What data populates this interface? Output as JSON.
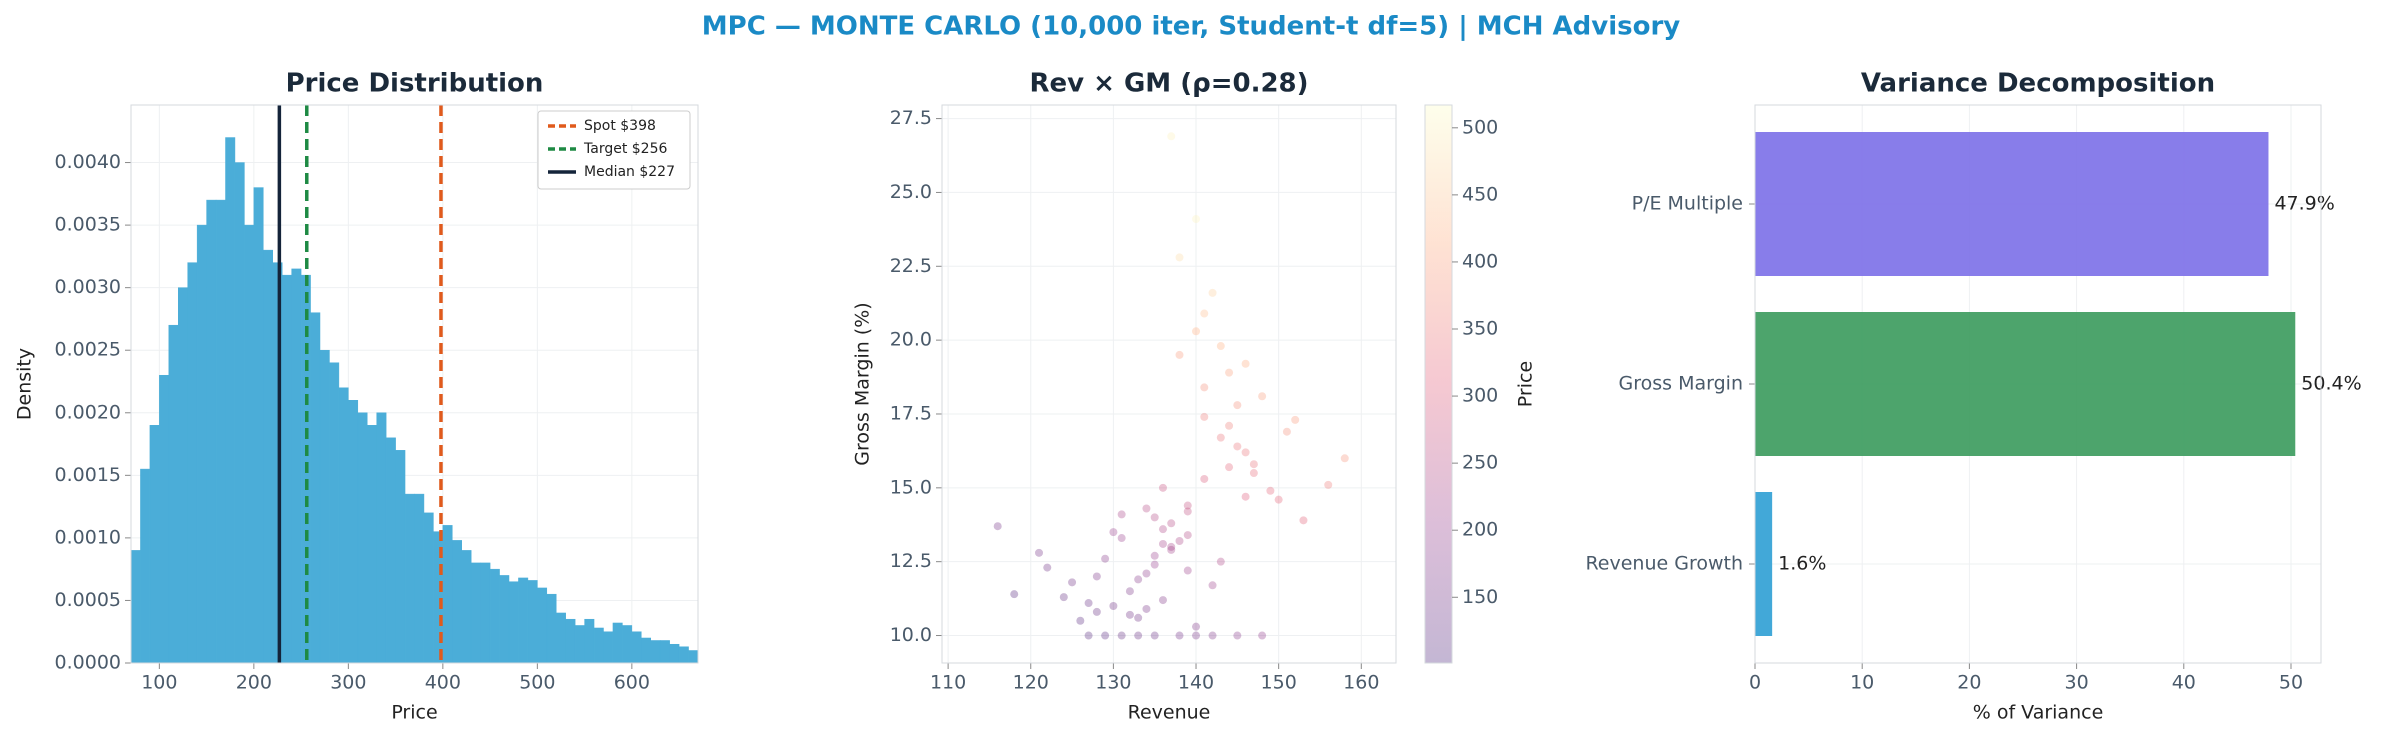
{
  "title": "MPC — MONTE CARLO (10,000 iter, Student-t df=5) | MCH Advisory",
  "chart_data": [
    {
      "type": "histogram",
      "title": "Price Distribution",
      "x_label": "Price",
      "y_label": "Density",
      "color": "#4badd8",
      "bins": [
        70,
        80,
        90,
        100,
        110,
        120,
        130,
        140,
        150,
        160,
        170,
        180,
        190,
        200,
        210,
        220,
        230,
        240,
        250,
        260,
        270,
        280,
        290,
        300,
        310,
        320,
        330,
        340,
        350,
        360,
        370,
        380,
        390,
        400,
        410,
        420,
        430,
        440,
        450,
        460,
        470,
        480,
        490,
        500,
        510,
        520,
        530,
        540,
        550,
        560,
        570,
        580,
        590,
        600,
        610,
        620,
        630,
        640,
        650,
        660,
        670
      ],
      "values": [
        0.0009,
        0.00155,
        0.0019,
        0.0023,
        0.0027,
        0.003,
        0.0032,
        0.0035,
        0.0037,
        0.0037,
        0.0042,
        0.004,
        0.0035,
        0.0038,
        0.0033,
        0.0032,
        0.0031,
        0.00315,
        0.0031,
        0.0028,
        0.0025,
        0.0024,
        0.0022,
        0.0021,
        0.002,
        0.0019,
        0.002,
        0.0018,
        0.0017,
        0.00135,
        0.00135,
        0.0012,
        0.00105,
        0.0011,
        0.00098,
        0.0009,
        0.0008,
        0.0008,
        0.00075,
        0.0007,
        0.00065,
        0.00068,
        0.00066,
        0.0006,
        0.00055,
        0.0004,
        0.00035,
        0.0003,
        0.00035,
        0.00028,
        0.00025,
        0.00032,
        0.0003,
        0.00025,
        0.0002,
        0.00018,
        0.00018,
        0.00015,
        0.00013,
        0.0001
      ],
      "xlim": [
        70,
        670
      ],
      "xticks": [
        100,
        200,
        300,
        400,
        500,
        600
      ],
      "ylim": [
        0,
        0.00446
      ],
      "yticks": [
        {
          "value": 0,
          "label": "0.0000"
        },
        {
          "value": 0.0005,
          "label": "0.0005"
        },
        {
          "value": 0.001,
          "label": "0.0010"
        },
        {
          "value": 0.0015,
          "label": "0.0015"
        },
        {
          "value": 0.002,
          "label": "0.0020"
        },
        {
          "value": 0.0025,
          "label": "0.0025"
        },
        {
          "value": 0.003,
          "label": "0.0030"
        },
        {
          "value": 0.0035,
          "label": "0.0035"
        },
        {
          "value": 0.004,
          "label": "0.0040"
        }
      ],
      "reference_lines": [
        {
          "name": "Spot $398",
          "value": 398,
          "color": "#e05a1c",
          "dashed": true
        },
        {
          "name": "Target $256",
          "value": 256,
          "color": "#1e8a44",
          "dashed": true
        },
        {
          "name": "Median $227",
          "value": 227,
          "color": "#14243a",
          "dashed": false
        }
      ],
      "legend": "upper-right",
      "grid": true
    },
    {
      "type": "scatter",
      "title": "Rev × GM (ρ=0.28)",
      "x_label": "Revenue",
      "y_label": "Gross Margin (%)",
      "x": [
        131,
        138,
        142,
        127,
        145,
        135,
        140,
        133,
        148,
        129,
        136,
        143,
        139,
        125,
        150,
        134,
        141,
        137,
        146,
        132,
        128,
        144,
        139,
        135,
        153,
        130,
        141,
        136,
        147,
        122,
        138,
        143,
        133,
        149,
        126,
        140,
        137,
        145,
        131,
        156,
        134,
        142,
        139,
        128,
        151,
        136,
        144,
        118,
        138,
        132,
        147,
        141,
        135,
        129,
        143,
        137,
        158,
        124,
        140,
        146,
        133,
        139,
        145,
        130,
        136,
        142,
        148,
        121,
        134,
        141,
        138,
        127,
        152,
        144,
        135,
        140,
        131,
        146,
        137,
        116
      ],
      "values": [
        10,
        10,
        10,
        10,
        10,
        10,
        10,
        10,
        10,
        10,
        11.2,
        12.5,
        13.4,
        11.8,
        14.6,
        12.1,
        15.3,
        13.0,
        16.2,
        11.5,
        10.8,
        17.1,
        14.2,
        12.7,
        13.9,
        11.0,
        18.4,
        13.6,
        15.8,
        12.3,
        19.5,
        16.7,
        11.9,
        14.9,
        10.5,
        20.3,
        12.9,
        17.8,
        13.3,
        15.1,
        10.9,
        21.6,
        14.4,
        12.0,
        16.9,
        13.1,
        18.9,
        11.4,
        22.8,
        10.7,
        15.5,
        17.4,
        14.0,
        12.6,
        19.8,
        13.8,
        16.0,
        11.3,
        24.1,
        14.7,
        10.6,
        12.2,
        16.4,
        13.5,
        15.0,
        11.7,
        18.1,
        12.8,
        14.3,
        20.9,
        13.2,
        11.1,
        17.3,
        15.7,
        12.4,
        10.3,
        14.1,
        19.2,
        26.9,
        13.7
      ],
      "color_values": [
        130,
        154,
        170,
        115,
        182,
        142,
        162,
        134,
        194,
        118,
        176,
        236,
        243,
        147,
        317,
        190,
        298,
        225,
        341,
        167,
        134,
        355,
        263,
        209,
        311,
        147,
        376,
        236,
        335,
        147,
        391,
        341,
        181,
        320,
        118,
        419,
        222,
        377,
        208,
        353,
        160,
        460,
        268,
        164,
        378,
        223,
        400,
        112,
        474,
        147,
        327,
        351,
        242,
        183,
        419,
        245,
        384,
        130,
        505,
        303,
        149,
        213,
        342,
        209,
        271,
        212,
        396,
        156,
        245,
        438,
        234,
        137,
        392,
        320,
        202,
        169,
        228,
        416,
        500,
        158
      ],
      "colormap": [
        "#3b0f70",
        "#8c2981",
        "#de4968",
        "#fe9f6d",
        "#fcfdbf"
      ],
      "alpha": 0.3,
      "colorbar_label": "Price",
      "clim": [
        101,
        517
      ],
      "cticks": [
        150,
        200,
        250,
        300,
        350,
        400,
        450,
        500
      ],
      "xlim": [
        109.26,
        164.2
      ],
      "xticks": [
        110,
        120,
        130,
        140,
        150,
        160
      ],
      "ylim": [
        9.07,
        27.96
      ],
      "yticks": [
        {
          "value": 10,
          "label": "10.0"
        },
        12.5,
        {
          "value": 15,
          "label": "15.0"
        },
        17.5,
        {
          "value": 20,
          "label": "20.0"
        },
        22.5,
        {
          "value": 25,
          "label": "25.0"
        },
        27.5
      ],
      "grid": true
    },
    {
      "type": "hbar",
      "title": "Variance Decomposition",
      "x_label": "% of Variance",
      "categories": [
        "Revenue Growth",
        "Gross Margin",
        "P/E Multiple"
      ],
      "values": [
        1.6,
        50.4,
        47.9
      ],
      "value_labels": [
        "1.6%",
        "50.4%",
        "47.9%"
      ],
      "colors": [
        "#2e9fd4",
        "#3a9a5c",
        "#7b6fe8"
      ],
      "xlim": [
        0,
        52.8
      ],
      "xticks": [
        0,
        10,
        20,
        30,
        40,
        50
      ],
      "grid": true
    }
  ]
}
